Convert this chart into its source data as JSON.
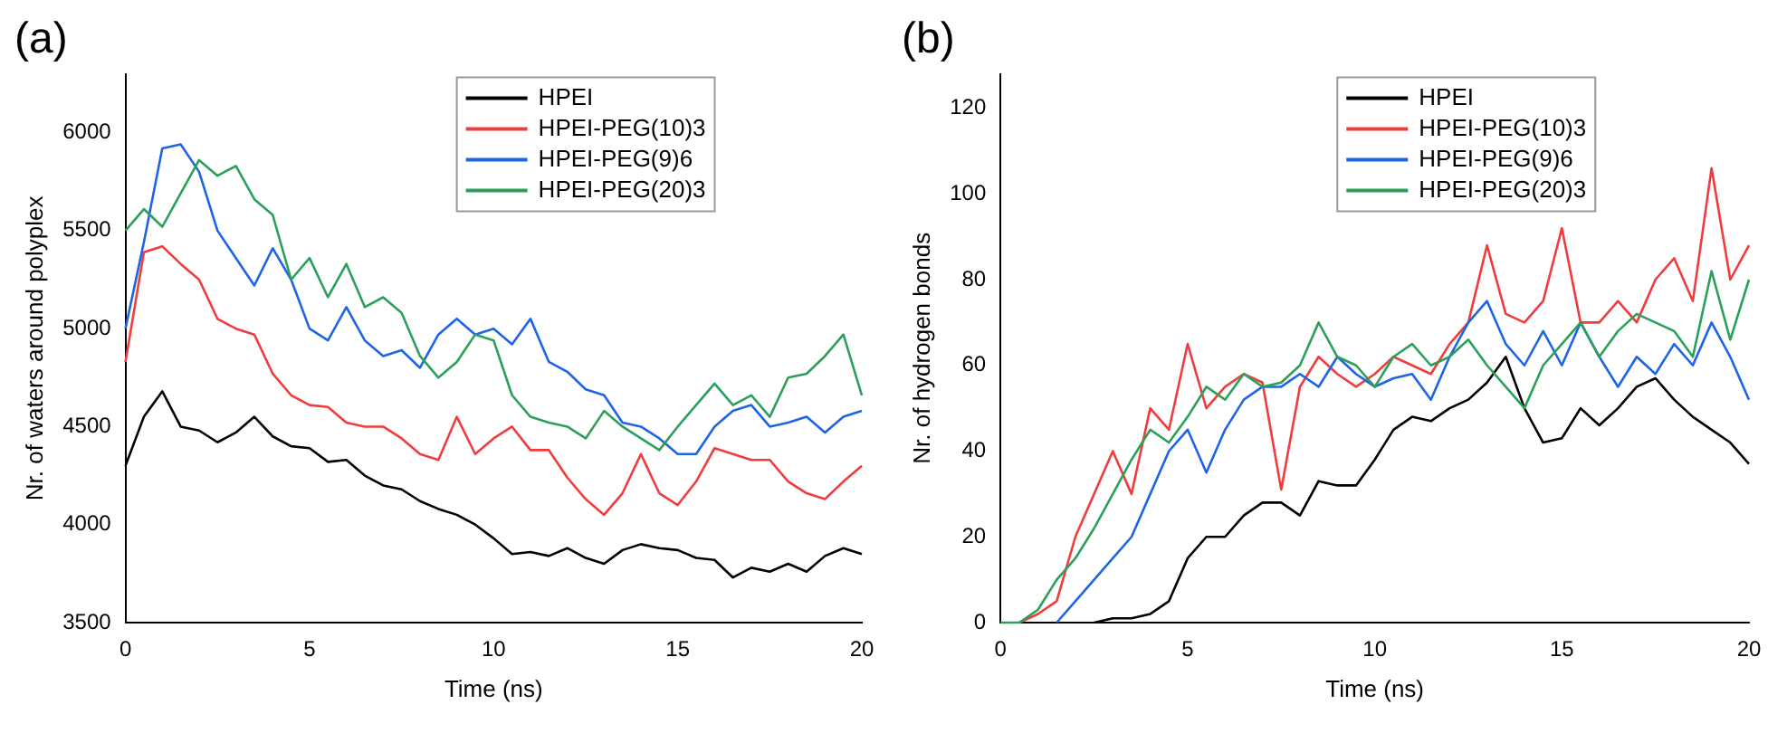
{
  "chart_data": [
    {
      "type": "line",
      "title": "(a)",
      "xlabel": "Time (ns)",
      "ylabel": "Nr. of waters around polyplex",
      "legend": "top right",
      "grid": false,
      "marker": "none",
      "line_style": "solid",
      "x": [
        0,
        0.5,
        1,
        1.5,
        2,
        2.5,
        3,
        3.5,
        4,
        4.5,
        5,
        5.5,
        6,
        6.5,
        7,
        7.5,
        8,
        8.5,
        9,
        9.5,
        10,
        10.5,
        11,
        11.5,
        12,
        12.5,
        13,
        13.5,
        14,
        14.5,
        15,
        15.5,
        16,
        16.5,
        17,
        17.5,
        18,
        18.5,
        19,
        19.5,
        20
      ],
      "xlim": [
        0,
        20
      ],
      "xticks": [
        0,
        5,
        10,
        15,
        20
      ],
      "ylim": [
        3500,
        6300
      ],
      "yticks": [
        3500,
        4000,
        4500,
        5000,
        5500,
        6000
      ],
      "series": [
        {
          "name": "HPEI",
          "color": "#000000",
          "values": [
            4300,
            4550,
            4680,
            4500,
            4480,
            4420,
            4470,
            4550,
            4450,
            4400,
            4390,
            4320,
            4330,
            4250,
            4200,
            4180,
            4120,
            4080,
            4050,
            4000,
            3930,
            3850,
            3860,
            3840,
            3880,
            3830,
            3800,
            3870,
            3900,
            3880,
            3870,
            3830,
            3820,
            3730,
            3780,
            3760,
            3800,
            3760,
            3840,
            3880,
            3850
          ]
        },
        {
          "name": "HPEI-PEG(10)3",
          "color": "#f03c3c",
          "values": [
            4830,
            5390,
            5420,
            5330,
            5250,
            5050,
            5000,
            4970,
            4770,
            4660,
            4610,
            4600,
            4520,
            4500,
            4500,
            4440,
            4360,
            4330,
            4550,
            4360,
            4440,
            4500,
            4380,
            4380,
            4240,
            4130,
            4050,
            4160,
            4360,
            4160,
            4100,
            4220,
            4390,
            4360,
            4330,
            4330,
            4220,
            4160,
            4130,
            4220,
            4300
          ]
        },
        {
          "name": "HPEI-PEG(9)6",
          "color": "#1e64e6",
          "values": [
            5000,
            5440,
            5920,
            5940,
            5800,
            5500,
            5360,
            5220,
            5410,
            5250,
            5000,
            4940,
            5110,
            4940,
            4860,
            4890,
            4800,
            4970,
            5050,
            4970,
            5000,
            4920,
            5050,
            4830,
            4780,
            4690,
            4660,
            4520,
            4500,
            4440,
            4360,
            4360,
            4500,
            4580,
            4610,
            4500,
            4520,
            4550,
            4470,
            4550,
            4580
          ]
        },
        {
          "name": "HPEI-PEG(20)3",
          "color": "#2ca05a",
          "values": [
            5500,
            5610,
            5520,
            5690,
            5860,
            5780,
            5830,
            5660,
            5580,
            5250,
            5360,
            5160,
            5330,
            5110,
            5160,
            5080,
            4860,
            4750,
            4830,
            4970,
            4940,
            4660,
            4550,
            4520,
            4500,
            4440,
            4580,
            4500,
            4440,
            4380,
            4500,
            4610,
            4720,
            4610,
            4660,
            4550,
            4750,
            4770,
            4860,
            4970,
            4660
          ]
        }
      ]
    },
    {
      "type": "line",
      "title": "(b)",
      "xlabel": "Time (ns)",
      "ylabel": "Nr. of hydrogen bonds",
      "legend": "top right",
      "grid": false,
      "marker": "none",
      "line_style": "solid",
      "x": [
        0,
        0.5,
        1,
        1.5,
        2,
        2.5,
        3,
        3.5,
        4,
        4.5,
        5,
        5.5,
        6,
        6.5,
        7,
        7.5,
        8,
        8.5,
        9,
        9.5,
        10,
        10.5,
        11,
        11.5,
        12,
        12.5,
        13,
        13.5,
        14,
        14.5,
        15,
        15.5,
        16,
        16.5,
        17,
        17.5,
        18,
        18.5,
        19,
        19.5,
        20
      ],
      "xlim": [
        0,
        20
      ],
      "xticks": [
        0,
        5,
        10,
        15,
        20
      ],
      "ylim": [
        0,
        128
      ],
      "yticks": [
        0,
        20,
        40,
        60,
        80,
        100,
        120
      ],
      "series": [
        {
          "name": "HPEI",
          "color": "#000000",
          "values": [
            null,
            null,
            null,
            null,
            null,
            0,
            1,
            1,
            2,
            5,
            15,
            20,
            20,
            25,
            28,
            28,
            25,
            33,
            32,
            32,
            38,
            45,
            48,
            47,
            50,
            52,
            56,
            62,
            50,
            42,
            43,
            50,
            46,
            50,
            55,
            57,
            52,
            48,
            45,
            42,
            37
          ]
        },
        {
          "name": "HPEI-PEG(10)3",
          "color": "#f03c3c",
          "values": [
            null,
            0,
            2,
            5,
            20,
            30,
            40,
            30,
            50,
            45,
            65,
            50,
            55,
            58,
            56,
            31,
            55,
            62,
            58,
            55,
            58,
            62,
            60,
            58,
            65,
            70,
            88,
            72,
            70,
            75,
            92,
            70,
            70,
            75,
            70,
            80,
            85,
            75,
            106,
            80,
            88
          ]
        },
        {
          "name": "HPEI-PEG(9)6",
          "color": "#1e64e6",
          "values": [
            null,
            null,
            null,
            0,
            5,
            10,
            15,
            20,
            30,
            40,
            45,
            35,
            45,
            52,
            55,
            55,
            58,
            55,
            62,
            58,
            55,
            57,
            58,
            52,
            62,
            70,
            75,
            65,
            60,
            68,
            60,
            70,
            62,
            55,
            62,
            58,
            65,
            60,
            70,
            62,
            52
          ]
        },
        {
          "name": "HPEI-PEG(20)3",
          "color": "#2ca05a",
          "values": [
            0,
            0,
            3,
            10,
            15,
            22,
            30,
            38,
            45,
            42,
            48,
            55,
            52,
            58,
            55,
            56,
            60,
            70,
            62,
            60,
            55,
            62,
            65,
            60,
            62,
            66,
            60,
            55,
            50,
            60,
            65,
            70,
            62,
            68,
            72,
            70,
            68,
            62,
            82,
            66,
            80
          ]
        }
      ]
    }
  ]
}
